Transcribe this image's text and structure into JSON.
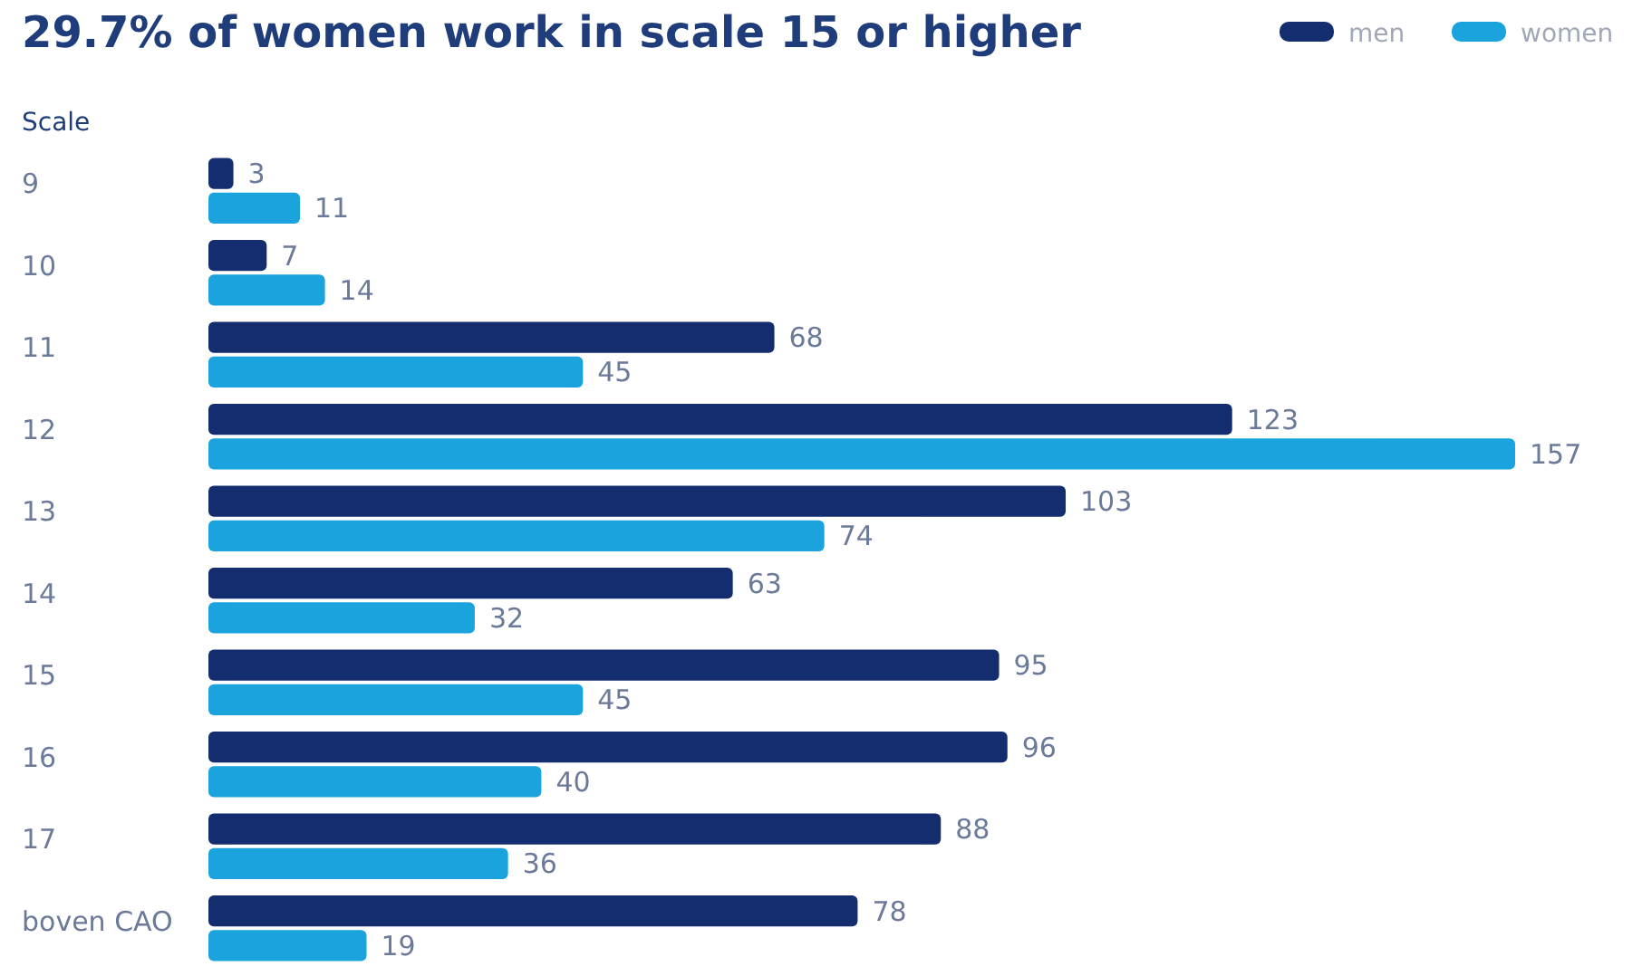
{
  "chart_data": {
    "type": "bar",
    "orientation": "horizontal",
    "title": "29.7% of women work in scale 15 or higher",
    "ylabel": "Scale",
    "categories": [
      "9",
      "10",
      "11",
      "12",
      "13",
      "14",
      "15",
      "16",
      "17",
      "boven CAO"
    ],
    "series": [
      {
        "name": "men",
        "color": "#142d6e",
        "values": [
          3,
          7,
          68,
          123,
          103,
          63,
          95,
          96,
          88,
          78
        ]
      },
      {
        "name": "women",
        "color": "#1aa3dc",
        "values": [
          11,
          14,
          45,
          157,
          74,
          32,
          45,
          40,
          36,
          19
        ]
      }
    ],
    "data_labels": true,
    "legend": "top right"
  }
}
